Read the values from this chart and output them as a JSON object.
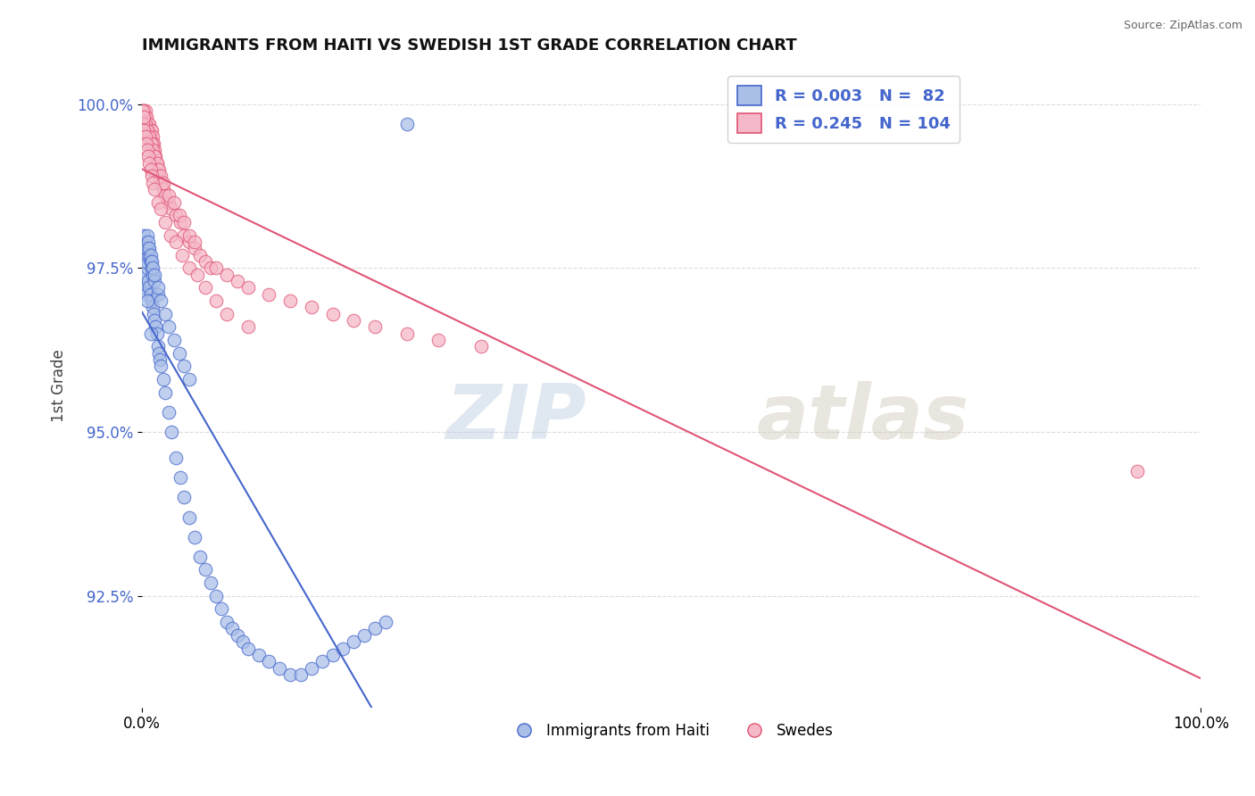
{
  "title": "IMMIGRANTS FROM HAITI VS SWEDISH 1ST GRADE CORRELATION CHART",
  "source": "Source: ZipAtlas.com",
  "ylabel": "1st Grade",
  "xlim": [
    0.0,
    1.0
  ],
  "ylim": [
    0.908,
    1.006
  ],
  "yticks": [
    0.925,
    0.95,
    0.975,
    1.0
  ],
  "ytick_labels": [
    "92.5%",
    "95.0%",
    "97.5%",
    "100.0%"
  ],
  "xticks": [
    0.0,
    1.0
  ],
  "xtick_labels": [
    "0.0%",
    "100.0%"
  ],
  "legend_blue_r": "0.003",
  "legend_blue_n": "82",
  "legend_pink_r": "0.245",
  "legend_pink_n": "104",
  "blue_color": "#aabfe8",
  "pink_color": "#f5b8c8",
  "trendline_blue_color": "#4466cc",
  "trendline_pink_color": "#e05575",
  "watermark_zip": "ZIP",
  "watermark_atlas": "atlas",
  "background_color": "#ffffff",
  "grid_color": "#dddddd",
  "blue_x": [
    0.001,
    0.002,
    0.003,
    0.004,
    0.005,
    0.006,
    0.007,
    0.008,
    0.009,
    0.01,
    0.011,
    0.012,
    0.013,
    0.014,
    0.015,
    0.016,
    0.017,
    0.018,
    0.02,
    0.022,
    0.025,
    0.028,
    0.032,
    0.036,
    0.04,
    0.045,
    0.05,
    0.055,
    0.06,
    0.065,
    0.07,
    0.075,
    0.08,
    0.085,
    0.09,
    0.095,
    0.1,
    0.11,
    0.12,
    0.13,
    0.14,
    0.15,
    0.16,
    0.17,
    0.18,
    0.19,
    0.2,
    0.21,
    0.22,
    0.23,
    0.001,
    0.002,
    0.003,
    0.004,
    0.005,
    0.006,
    0.007,
    0.008,
    0.009,
    0.01,
    0.012,
    0.015,
    0.002,
    0.003,
    0.004,
    0.005,
    0.006,
    0.007,
    0.008,
    0.009,
    0.01,
    0.012,
    0.015,
    0.018,
    0.022,
    0.025,
    0.03,
    0.035,
    0.04,
    0.045,
    0.005,
    0.008,
    0.25
  ],
  "blue_y": [
    0.973,
    0.974,
    0.972,
    0.971,
    0.975,
    0.973,
    0.972,
    0.971,
    0.97,
    0.969,
    0.968,
    0.967,
    0.966,
    0.965,
    0.963,
    0.962,
    0.961,
    0.96,
    0.958,
    0.956,
    0.953,
    0.95,
    0.946,
    0.943,
    0.94,
    0.937,
    0.934,
    0.931,
    0.929,
    0.927,
    0.925,
    0.923,
    0.921,
    0.92,
    0.919,
    0.918,
    0.917,
    0.916,
    0.915,
    0.914,
    0.913,
    0.913,
    0.914,
    0.915,
    0.916,
    0.917,
    0.918,
    0.919,
    0.92,
    0.921,
    0.978,
    0.977,
    0.976,
    0.978,
    0.977,
    0.978,
    0.977,
    0.976,
    0.975,
    0.974,
    0.973,
    0.971,
    0.98,
    0.979,
    0.978,
    0.98,
    0.979,
    0.978,
    0.977,
    0.976,
    0.975,
    0.974,
    0.972,
    0.97,
    0.968,
    0.966,
    0.964,
    0.962,
    0.96,
    0.958,
    0.97,
    0.965,
    0.997
  ],
  "pink_x": [
    0.0,
    0.0,
    0.001,
    0.001,
    0.001,
    0.002,
    0.002,
    0.002,
    0.003,
    0.003,
    0.004,
    0.004,
    0.005,
    0.005,
    0.006,
    0.006,
    0.007,
    0.007,
    0.008,
    0.008,
    0.009,
    0.009,
    0.01,
    0.01,
    0.011,
    0.012,
    0.013,
    0.014,
    0.015,
    0.016,
    0.018,
    0.02,
    0.022,
    0.025,
    0.028,
    0.032,
    0.036,
    0.04,
    0.045,
    0.05,
    0.055,
    0.06,
    0.065,
    0.07,
    0.08,
    0.09,
    0.1,
    0.12,
    0.14,
    0.16,
    0.18,
    0.2,
    0.22,
    0.25,
    0.28,
    0.32,
    0.001,
    0.002,
    0.003,
    0.004,
    0.005,
    0.006,
    0.007,
    0.008,
    0.009,
    0.01,
    0.012,
    0.014,
    0.016,
    0.018,
    0.02,
    0.025,
    0.03,
    0.035,
    0.04,
    0.045,
    0.05,
    0.001,
    0.002,
    0.003,
    0.004,
    0.005,
    0.006,
    0.007,
    0.008,
    0.009,
    0.01,
    0.012,
    0.015,
    0.018,
    0.022,
    0.027,
    0.032,
    0.038,
    0.045,
    0.052,
    0.06,
    0.07,
    0.08,
    0.1,
    0.0,
    0.001,
    0.002,
    0.94
  ],
  "pink_y": [
    0.999,
    0.998,
    0.999,
    0.998,
    0.997,
    0.999,
    0.998,
    0.997,
    0.999,
    0.998,
    0.998,
    0.997,
    0.997,
    0.996,
    0.997,
    0.996,
    0.997,
    0.995,
    0.996,
    0.995,
    0.996,
    0.994,
    0.995,
    0.994,
    0.994,
    0.993,
    0.992,
    0.991,
    0.99,
    0.989,
    0.988,
    0.987,
    0.986,
    0.985,
    0.984,
    0.983,
    0.982,
    0.98,
    0.979,
    0.978,
    0.977,
    0.976,
    0.975,
    0.975,
    0.974,
    0.973,
    0.972,
    0.971,
    0.97,
    0.969,
    0.968,
    0.967,
    0.966,
    0.965,
    0.964,
    0.963,
    0.998,
    0.997,
    0.997,
    0.996,
    0.996,
    0.995,
    0.995,
    0.994,
    0.994,
    0.993,
    0.992,
    0.991,
    0.99,
    0.989,
    0.988,
    0.986,
    0.985,
    0.983,
    0.982,
    0.98,
    0.979,
    0.997,
    0.996,
    0.995,
    0.994,
    0.993,
    0.992,
    0.991,
    0.99,
    0.989,
    0.988,
    0.987,
    0.985,
    0.984,
    0.982,
    0.98,
    0.979,
    0.977,
    0.975,
    0.974,
    0.972,
    0.97,
    0.968,
    0.966,
    0.999,
    0.999,
    0.998,
    0.944
  ]
}
